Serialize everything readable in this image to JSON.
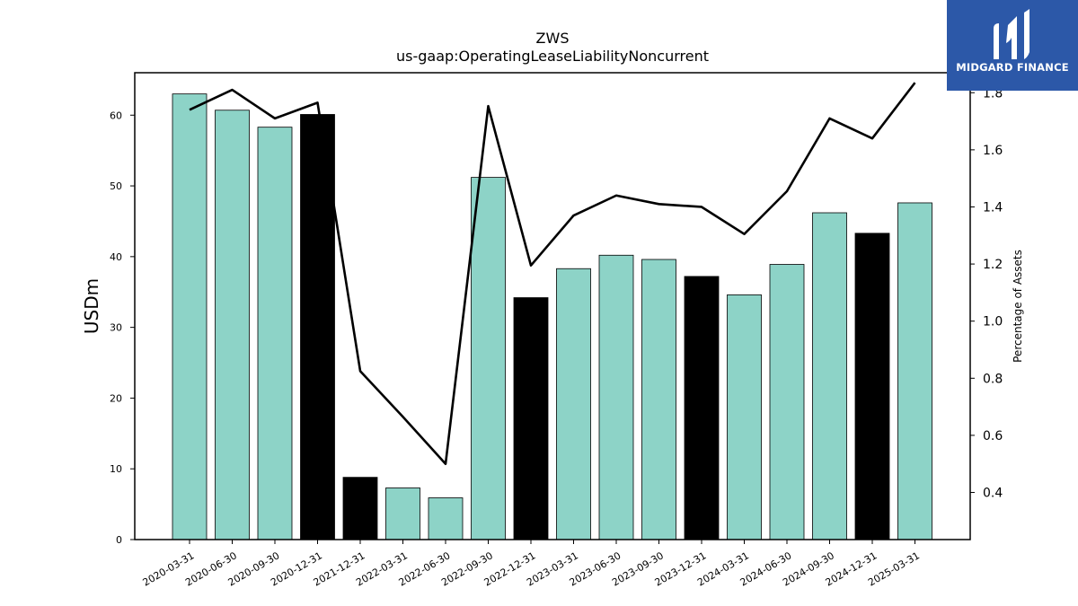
{
  "brand": {
    "name": "MIDGARD FINANCE",
    "background": "#2c58a8"
  },
  "chart_data": {
    "type": "bar",
    "title": "ZWS",
    "subtitle": "us-gaap:OperatingLeaseLiabilityNoncurrent",
    "ylabel": "USDm",
    "y2label": "Percentage of Assets",
    "ylim": [
      0,
      66
    ],
    "y2lim": [
      0.235,
      1.87
    ],
    "yticks": [
      0,
      10,
      20,
      30,
      40,
      50,
      60
    ],
    "y2ticks": [
      0.4,
      0.6,
      0.8,
      1.0,
      1.2,
      1.4,
      1.6,
      1.8
    ],
    "categories": [
      "2020-03-31",
      "2020-06-30",
      "2020-09-30",
      "2020-12-31",
      "2021-12-31",
      "2022-03-31",
      "2022-06-30",
      "2022-09-30",
      "2022-12-31",
      "2023-03-31",
      "2023-06-30",
      "2023-09-30",
      "2023-12-31",
      "2024-03-31",
      "2024-06-30",
      "2024-09-30",
      "2024-12-31",
      "2025-03-31"
    ],
    "series": [
      {
        "kind": "bar",
        "axis": "left",
        "values": [
          63.0,
          60.7,
          58.3,
          60.1,
          8.8,
          7.3,
          5.9,
          51.2,
          34.2,
          38.3,
          40.2,
          39.6,
          37.2,
          34.6,
          38.9,
          46.2,
          43.3,
          47.6
        ],
        "colors": [
          "#8dd3c7",
          "#8dd3c7",
          "#8dd3c7",
          "#000000",
          "#000000",
          "#8dd3c7",
          "#8dd3c7",
          "#8dd3c7",
          "#000000",
          "#8dd3c7",
          "#8dd3c7",
          "#8dd3c7",
          "#000000",
          "#8dd3c7",
          "#8dd3c7",
          "#8dd3c7",
          "#000000",
          "#8dd3c7"
        ]
      },
      {
        "kind": "line",
        "axis": "right",
        "color": "#000000",
        "values": [
          1.74,
          1.81,
          1.71,
          1.765,
          0.825,
          0.665,
          0.5,
          1.753,
          1.195,
          1.37,
          1.44,
          1.41,
          1.4,
          1.305,
          1.455,
          1.71,
          1.64,
          1.835
        ]
      }
    ],
    "grid": false,
    "legend": "none"
  }
}
